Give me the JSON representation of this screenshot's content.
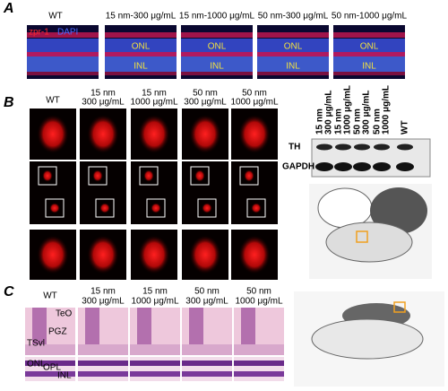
{
  "panel_a": {
    "label": "A",
    "stain": {
      "red": "zpr-1",
      "blue": "DAPI"
    },
    "columns": [
      "WT",
      "15 nm-300 μg/mL",
      "15 nm-1000 μg/mL",
      "50 nm-300 μg/mL",
      "50 nm-1000 μg/mL"
    ],
    "layers": [
      "ONL",
      "INL"
    ]
  },
  "panel_b": {
    "label": "B",
    "columns": [
      [
        "WT"
      ],
      [
        "15 nm",
        "300 μg/mL"
      ],
      [
        "15 nm",
        "1000 μg/mL"
      ],
      [
        "50 nm",
        "300 μg/mL"
      ],
      [
        "50 nm",
        "1000 μg/mL"
      ]
    ],
    "blot": {
      "lanes": [
        [
          "15 nm",
          "300 μg/mL"
        ],
        [
          "15 nm",
          "1000 μg/mL"
        ],
        [
          "50 nm",
          "300 μg/mL"
        ],
        [
          "50 nm",
          "1000 μg/mL"
        ],
        [
          "WT"
        ]
      ],
      "rows": [
        "TH",
        "GAPDH"
      ]
    }
  },
  "panel_c": {
    "label": "C",
    "columns": [
      [
        "WT"
      ],
      [
        "15 nm",
        "300 μg/mL"
      ],
      [
        "15 nm",
        "1000 μg/mL"
      ],
      [
        "50 nm",
        "300 μg/mL"
      ],
      [
        "50 nm",
        "1000 μg/mL"
      ]
    ],
    "regions": [
      "TeO",
      "PGZ",
      "TSvl"
    ],
    "layers": [
      "ONL",
      "OPL",
      "INL"
    ]
  }
}
